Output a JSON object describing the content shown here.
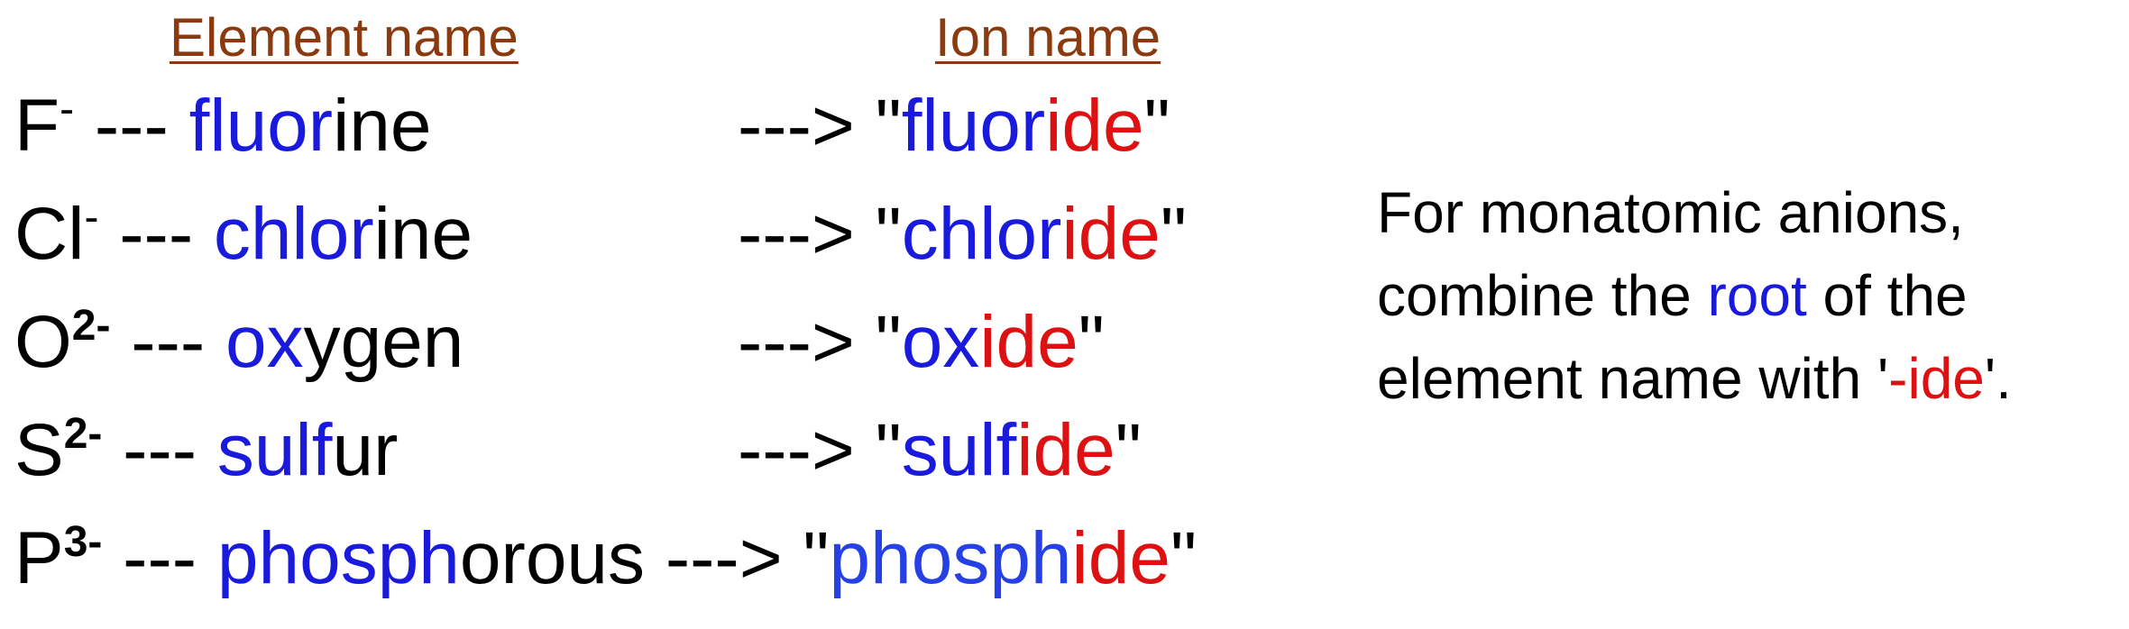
{
  "headers": {
    "element_name": "Element name",
    "ion_name": "Ion name"
  },
  "colors": {
    "header": "#8b3a0f",
    "root": "#1a1add",
    "suffix": "#dd1111",
    "text": "#000000"
  },
  "rows": [
    {
      "symbol": "F",
      "charge": "-",
      "separator": " --- ",
      "element_root": "fluor",
      "element_rest": "ine",
      "arrow": "---> ",
      "open_quote": "\"",
      "ion_root": "fluor",
      "ion_suffix": "ide",
      "close_quote": "\""
    },
    {
      "symbol": "Cl",
      "charge": "-",
      "separator": " --- ",
      "element_root": "chlor",
      "element_rest": "ine",
      "arrow": "---> ",
      "open_quote": "\"",
      "ion_root": "chlor",
      "ion_suffix": "ide",
      "close_quote": "\""
    },
    {
      "symbol": "O",
      "charge": "2-",
      "separator": " --- ",
      "element_root": "ox",
      "element_rest": "ygen",
      "arrow": "---> ",
      "open_quote": "\"",
      "ion_root": "ox",
      "ion_suffix": "ide",
      "close_quote": "\""
    },
    {
      "symbol": "S",
      "charge": "2-",
      "separator": " --- ",
      "element_root": "sulf",
      "element_rest": "ur",
      "arrow": "---> ",
      "open_quote": "\"",
      "ion_root": "sulf",
      "ion_suffix": "ide",
      "close_quote": "\""
    },
    {
      "symbol": "P",
      "charge": "3-",
      "separator": " --- ",
      "element_root": "phosph",
      "element_rest": "orous",
      "arrow": " ---> ",
      "open_quote": "\"",
      "ion_root": "phosph",
      "ion_suffix": "ide",
      "close_quote": "\""
    }
  ],
  "note": {
    "line1": "For monatomic anions,",
    "line2_pre": "combine the ",
    "line2_root": "root",
    "line2_post": " of the",
    "line3_pre": "element name with '",
    "line3_suffix": "-ide",
    "line3_post": "'."
  }
}
